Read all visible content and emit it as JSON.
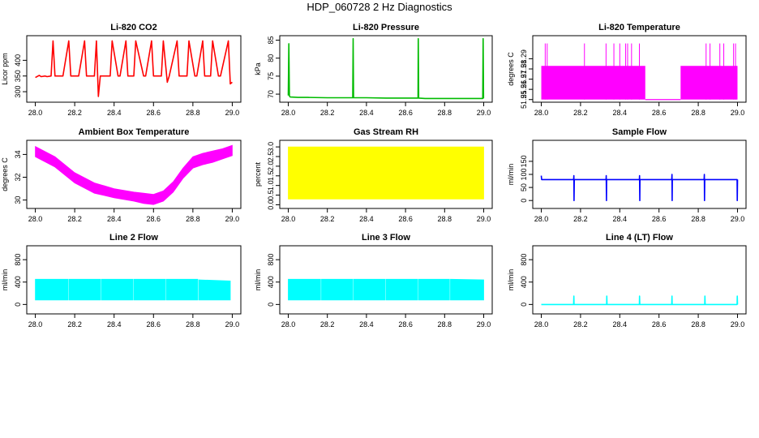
{
  "figure": {
    "title": "HDP_060728  2 Hz Diagnostics"
  },
  "chart_data": [
    {
      "type": "line",
      "title": "Li-820 CO2",
      "xlabel": "",
      "ylabel": "Licor ppm",
      "xlim": [
        28.0,
        29.0
      ],
      "ylim": [
        275,
        470
      ],
      "xticks": [
        28.0,
        28.2,
        28.4,
        28.6,
        28.8,
        29.0
      ],
      "xtick_labels": [
        "28.0",
        "28.2",
        "28.4",
        "28.6",
        "28.8",
        "29.0"
      ],
      "yticks": [
        300,
        350,
        400
      ],
      "ytick_labels": [
        "300",
        "350",
        "400"
      ],
      "color": "#ff0000",
      "series": [
        {
          "x": [
            28.0,
            28.02,
            28.03,
            28.05,
            28.06,
            28.08,
            28.09,
            28.1,
            28.13,
            28.14,
            28.17,
            28.18,
            28.21,
            28.22,
            28.25,
            28.26,
            28.3,
            28.31,
            28.32,
            28.33,
            28.34,
            28.38,
            28.39,
            28.42,
            28.43,
            28.46,
            28.47,
            28.5,
            28.51,
            28.55,
            28.56,
            28.59,
            28.6,
            28.64,
            28.65,
            28.67,
            28.68,
            28.72,
            28.73,
            28.77,
            28.78,
            28.81,
            28.82,
            28.85,
            28.86,
            28.89,
            28.9,
            28.93,
            28.94,
            28.98,
            28.99,
            29.0
          ],
          "y": [
            345,
            352,
            348,
            350,
            348,
            350,
            462,
            350,
            350,
            350,
            462,
            350,
            350,
            350,
            462,
            350,
            350,
            462,
            285,
            350,
            350,
            350,
            462,
            350,
            350,
            462,
            350,
            350,
            462,
            350,
            350,
            462,
            350,
            350,
            462,
            330,
            350,
            462,
            350,
            350,
            462,
            350,
            350,
            462,
            350,
            350,
            462,
            350,
            350,
            462,
            325,
            330
          ]
        }
      ]
    },
    {
      "type": "line",
      "title": "Li-820 Pressure",
      "xlabel": "",
      "ylabel": "kPa",
      "xlim": [
        28.0,
        29.0
      ],
      "ylim": [
        68.5,
        85.5
      ],
      "xticks": [
        28.0,
        28.2,
        28.4,
        28.6,
        28.8,
        29.0
      ],
      "xtick_labels": [
        "28.0",
        "28.2",
        "28.4",
        "28.6",
        "28.8",
        "29.0"
      ],
      "yticks": [
        70,
        75,
        80,
        85
      ],
      "ytick_labels": [
        "70",
        "75",
        "80",
        "85"
      ],
      "color": "#00bb00",
      "series": [
        {
          "x": [
            28.0,
            28.003,
            28.006,
            28.01,
            28.05,
            28.1,
            28.2,
            28.33,
            28.332,
            28.334,
            28.4,
            28.5,
            28.6,
            28.664,
            28.665,
            28.667,
            28.7,
            28.8,
            28.9,
            28.995,
            28.997,
            28.999
          ],
          "y": [
            69.6,
            84.0,
            69.5,
            69.2,
            69.1,
            69.1,
            69.0,
            69.0,
            85.4,
            69.0,
            69.0,
            68.9,
            68.9,
            68.9,
            85.4,
            68.9,
            68.8,
            68.8,
            68.8,
            68.8,
            85.4,
            68.8
          ]
        }
      ]
    },
    {
      "type": "line",
      "title": "Li-820 Temperature",
      "xlabel": "",
      "ylabel": "degrees C",
      "xlim": [
        28.0,
        29.0
      ],
      "ylim": [
        51.25,
        51.31
      ],
      "xticks": [
        28.0,
        28.2,
        28.4,
        28.6,
        28.8,
        29.0
      ],
      "xtick_labels": [
        "28.0",
        "28.2",
        "28.4",
        "28.6",
        "28.8",
        "29.0"
      ],
      "yticks": [
        51.25,
        51.26,
        51.27,
        51.28,
        51.29
      ],
      "ytick_labels": [
        "51.25",
        "51.26",
        "51.27",
        "51.28",
        "51.29"
      ],
      "color": "#ff00ff",
      "band": {
        "x_start": 28.0,
        "x_end": 29.0,
        "y_low": 51.25,
        "y_high": 51.283
      },
      "band_gaps": [
        [
          28.53,
          28.71
        ]
      ],
      "spikes": {
        "x": [
          28.02,
          28.03,
          28.22,
          28.33,
          28.37,
          28.4,
          28.43,
          28.44,
          28.46,
          28.5,
          28.84,
          28.86,
          28.91,
          28.93,
          28.98,
          28.99
        ],
        "y_high": 51.305
      }
    },
    {
      "type": "area",
      "title": "Ambient Box Temperature",
      "xlabel": "",
      "ylabel": "degrees C",
      "xlim": [
        28.0,
        29.0
      ],
      "ylim": [
        29.5,
        35.0
      ],
      "xticks": [
        28.0,
        28.2,
        28.4,
        28.6,
        28.8,
        29.0
      ],
      "xtick_labels": [
        "28.0",
        "28.2",
        "28.4",
        "28.6",
        "28.8",
        "29.0"
      ],
      "yticks": [
        30,
        32,
        34
      ],
      "ytick_labels": [
        "30",
        "32",
        "34"
      ],
      "color": "#ff00ff",
      "series": [
        {
          "x": [
            28.0,
            28.1,
            28.2,
            28.3,
            28.4,
            28.5,
            28.55,
            28.6,
            28.65,
            28.7,
            28.75,
            28.8,
            28.85,
            28.9,
            28.95,
            29.0
          ],
          "y_low": [
            33.8,
            32.9,
            31.5,
            30.6,
            30.2,
            29.9,
            29.7,
            29.6,
            29.9,
            30.7,
            31.9,
            32.8,
            33.1,
            33.3,
            33.6,
            33.9
          ],
          "y_high": [
            34.7,
            33.8,
            32.4,
            31.5,
            31.0,
            30.7,
            30.6,
            30.5,
            30.8,
            31.6,
            32.8,
            33.8,
            34.1,
            34.3,
            34.5,
            34.8
          ]
        }
      ]
    },
    {
      "type": "area",
      "title": "Gas Stream RH",
      "xlabel": "",
      "ylabel": "percent",
      "xlim": [
        28.0,
        29.0
      ],
      "ylim": [
        -0.05,
        3.2
      ],
      "xticks": [
        28.0,
        28.2,
        28.4,
        28.6,
        28.8,
        29.0
      ],
      "xtick_labels": [
        "28.0",
        "28.2",
        "28.4",
        "28.6",
        "28.8",
        "29.0"
      ],
      "yticks": [
        0.0,
        0.5,
        1.0,
        1.5,
        2.0,
        2.5,
        3.0
      ],
      "ytick_labels": [
        "0.0",
        "0.5",
        "1.0",
        "1.5",
        "2.0",
        "2.5",
        "3.0"
      ],
      "color": "#ffff00",
      "series": [
        {
          "x": [
            28.0,
            29.0
          ],
          "y_low": [
            0.3,
            0.3
          ],
          "y_high": [
            3.0,
            3.0
          ]
        }
      ]
    },
    {
      "type": "line",
      "title": "Sample Flow",
      "xlabel": "",
      "ylabel": "ml/min",
      "xlim": [
        28.0,
        29.0
      ],
      "ylim": [
        -20,
        220
      ],
      "xticks": [
        28.0,
        28.2,
        28.4,
        28.6,
        28.8,
        29.0
      ],
      "xtick_labels": [
        "28.0",
        "28.2",
        "28.4",
        "28.6",
        "28.8",
        "29.0"
      ],
      "yticks": [
        0,
        50,
        100,
        150
      ],
      "ytick_labels": [
        "0",
        "50",
        "100",
        "150"
      ],
      "color": "#0000ff",
      "series": [
        {
          "x": [
            28.0,
            28.001,
            28.002,
            28.165,
            28.166,
            28.167,
            28.168,
            28.33,
            28.331,
            28.332,
            28.333,
            28.5,
            28.501,
            28.502,
            28.503,
            28.665,
            28.666,
            28.667,
            28.668,
            28.83,
            28.831,
            28.832,
            28.833,
            28.998,
            28.999,
            29.0
          ],
          "y": [
            95,
            85,
            80,
            80,
            95,
            0,
            80,
            80,
            95,
            0,
            80,
            80,
            95,
            0,
            80,
            80,
            100,
            0,
            80,
            80,
            100,
            0,
            80,
            80,
            0,
            80
          ]
        }
      ]
    },
    {
      "type": "area",
      "title": "Line 2 Flow",
      "xlabel": "",
      "ylabel": "ml/min",
      "xlim": [
        28.0,
        29.0
      ],
      "ylim": [
        -120,
        1000
      ],
      "xticks": [
        28.0,
        28.2,
        28.4,
        28.6,
        28.8,
        29.0
      ],
      "xtick_labels": [
        "28.0",
        "28.2",
        "28.4",
        "28.6",
        "28.8",
        "29.0"
      ],
      "yticks": [
        0,
        400,
        800
      ],
      "ytick_labels": [
        "0",
        "400",
        "800"
      ],
      "color": "#00ffff",
      "series": [
        {
          "x": [
            28.0,
            28.165
          ],
          "y_low": [
            80,
            80
          ],
          "y_high": [
            450,
            450
          ]
        },
        {
          "x": [
            28.17,
            28.33
          ],
          "y_low": [
            80,
            80
          ],
          "y_high": [
            450,
            450
          ]
        },
        {
          "x": [
            28.335,
            28.495
          ],
          "y_low": [
            80,
            80
          ],
          "y_high": [
            450,
            450
          ]
        },
        {
          "x": [
            28.5,
            28.66
          ],
          "y_low": [
            80,
            80
          ],
          "y_high": [
            450,
            450
          ]
        },
        {
          "x": [
            28.665,
            28.825
          ],
          "y_low": [
            80,
            80
          ],
          "y_high": [
            450,
            450
          ]
        },
        {
          "x": [
            28.83,
            28.99
          ],
          "y_low": [
            80,
            80
          ],
          "y_high": [
            440,
            420
          ]
        }
      ]
    },
    {
      "type": "area",
      "title": "Line 3 Flow",
      "xlabel": "",
      "ylabel": "ml/min",
      "xlim": [
        28.0,
        29.0
      ],
      "ylim": [
        -120,
        1000
      ],
      "xticks": [
        28.0,
        28.2,
        28.4,
        28.6,
        28.8,
        29.0
      ],
      "xtick_labels": [
        "28.0",
        "28.2",
        "28.4",
        "28.6",
        "28.8",
        "29.0"
      ],
      "yticks": [
        0,
        400,
        800
      ],
      "ytick_labels": [
        "0",
        "400",
        "800"
      ],
      "color": "#00ffff",
      "series": [
        {
          "x": [
            28.0,
            28.165
          ],
          "y_low": [
            80,
            80
          ],
          "y_high": [
            450,
            450
          ]
        },
        {
          "x": [
            28.17,
            28.33
          ],
          "y_low": [
            80,
            80
          ],
          "y_high": [
            450,
            450
          ]
        },
        {
          "x": [
            28.335,
            28.495
          ],
          "y_low": [
            80,
            80
          ],
          "y_high": [
            450,
            450
          ]
        },
        {
          "x": [
            28.5,
            28.66
          ],
          "y_low": [
            80,
            80
          ],
          "y_high": [
            450,
            450
          ]
        },
        {
          "x": [
            28.665,
            28.825
          ],
          "y_low": [
            80,
            80
          ],
          "y_high": [
            450,
            450
          ]
        },
        {
          "x": [
            28.83,
            29.0
          ],
          "y_low": [
            80,
            80
          ],
          "y_high": [
            450,
            440
          ]
        }
      ]
    },
    {
      "type": "line",
      "title": "Line 4 (LT) Flow",
      "xlabel": "",
      "ylabel": "ml/min",
      "xlim": [
        28.0,
        29.0
      ],
      "ylim": [
        -120,
        1000
      ],
      "xticks": [
        28.0,
        28.2,
        28.4,
        28.6,
        28.8,
        29.0
      ],
      "xtick_labels": [
        "28.0",
        "28.2",
        "28.4",
        "28.6",
        "28.8",
        "29.0"
      ],
      "yticks": [
        0,
        400,
        800
      ],
      "ytick_labels": [
        "0",
        "400",
        "800"
      ],
      "color": "#00ffff",
      "series": [
        {
          "x": [
            28.0,
            28.165,
            28.166,
            28.167,
            28.333,
            28.334,
            28.335,
            28.5,
            28.501,
            28.502,
            28.665,
            28.666,
            28.667,
            28.833,
            28.834,
            28.835,
            28.998,
            28.999,
            29.0
          ],
          "y": [
            0,
            0,
            150,
            0,
            0,
            150,
            0,
            0,
            150,
            0,
            0,
            150,
            0,
            0,
            150,
            0,
            0,
            150,
            0
          ]
        }
      ]
    }
  ]
}
